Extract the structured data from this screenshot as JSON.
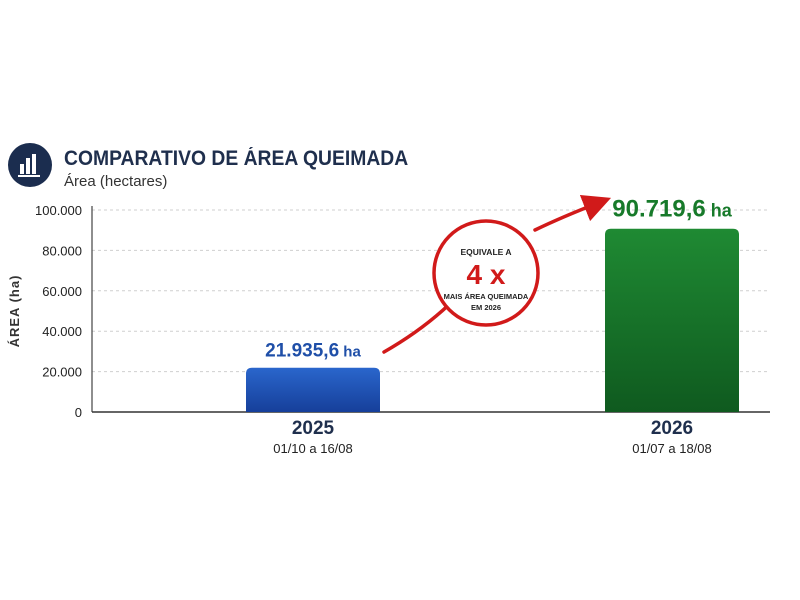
{
  "header": {
    "title": "COMPARATIVO DE ÁREA QUEIMADA",
    "subtitle": "Área (hectares)",
    "icon": "bar-chart-icon"
  },
  "chart_data": {
    "type": "bar",
    "title": "COMPARATIVO DE ÁREA QUEIMADA",
    "subtitle": "Área (hectares)",
    "ylabel": "ÁREA (ha)",
    "xlabel": "",
    "ylim": [
      0,
      100000
    ],
    "yticks": [
      "0",
      "20.000",
      "40.000",
      "60.000",
      "80.000",
      "100.000"
    ],
    "ytick_values": [
      0,
      20000,
      40000,
      60000,
      80000,
      100000
    ],
    "grid": true,
    "categories": [
      "2025",
      "2026"
    ],
    "category_sublabels": [
      "01/10 a 16/08",
      "01/07 a 18/08"
    ],
    "values": [
      21935.6,
      90719.6
    ],
    "value_labels": [
      "21.935,6",
      "90.719,6"
    ],
    "value_unit": "ha",
    "colors": [
      "#1f56b8",
      "#1a7a2c"
    ],
    "label_colors": [
      "#1f4fa8",
      "#177a2a"
    ],
    "annotation": {
      "line1": "EQUIVALE A",
      "big": "4 x",
      "line2": "MAIS ÁREA QUEIMADA",
      "line3": "EM 2026",
      "color": "#d11a1a"
    }
  }
}
